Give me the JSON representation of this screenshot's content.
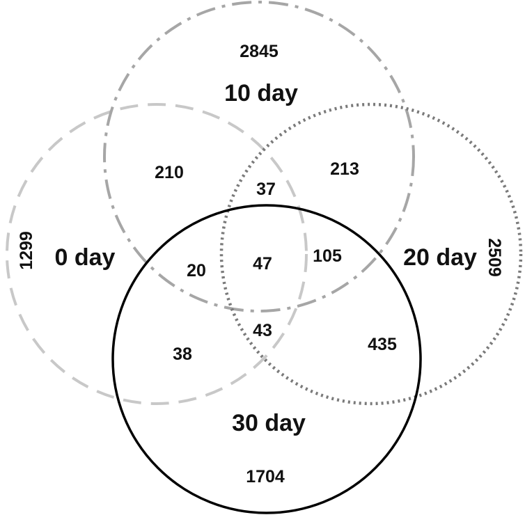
{
  "sets": [
    {
      "key": "day0",
      "label": "0 day",
      "color": "#c8c8c8",
      "line_style": "dashed"
    },
    {
      "key": "day10",
      "label": "10 day",
      "color": "#a6a6a6",
      "line_style": "dash-dot"
    },
    {
      "key": "day20",
      "label": "20 day",
      "color": "#7a7a7a",
      "line_style": "dotted"
    },
    {
      "key": "day30",
      "label": "30 day",
      "color": "#000000",
      "line_style": "solid"
    }
  ],
  "regions": {
    "only_10day": "2845",
    "only_0day": "1299",
    "only_20day": "2509",
    "only_30day": "1704",
    "day0_day10": "210",
    "day10_day20": "213",
    "day0_day10_day20": "37",
    "all_four": "47",
    "day10_day20_day30": "105",
    "day0_day10_day30": "20",
    "day0_day20_day30": "43",
    "day0_day30": "38",
    "day20_day30": "435"
  }
}
